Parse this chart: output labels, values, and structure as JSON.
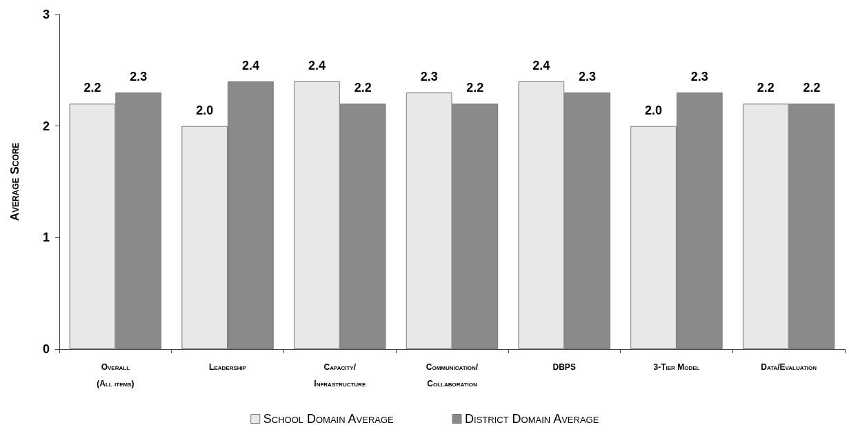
{
  "chart_data": {
    "type": "bar",
    "ylabel": "Average Score",
    "categories": [
      "Overall\n(All items)",
      "Leadership",
      "Capacity/\nInfrastructure",
      "Communication/\nCollaboration",
      "DBPS",
      "3-Tier Model",
      "Data/Evaluation"
    ],
    "series": [
      {
        "name": "School Domain Average",
        "color": "#e8e8e8",
        "values": [
          2.2,
          2.0,
          2.4,
          2.3,
          2.4,
          2.0,
          2.2
        ],
        "value_labels": [
          "2.2",
          "2.0",
          "2.4",
          "2.3",
          "2.4",
          "2.0",
          "2.2"
        ]
      },
      {
        "name": "District Domain Average",
        "color": "#8a8a8a",
        "values": [
          2.3,
          2.4,
          2.2,
          2.2,
          2.3,
          2.3,
          2.2
        ],
        "value_labels": [
          "2.3",
          "2.4",
          "2.2",
          "2.2",
          "2.3",
          "2.3",
          "2.2"
        ]
      }
    ],
    "ylim": [
      0,
      3
    ],
    "yticks": [
      0,
      1,
      2,
      3
    ],
    "grid": false,
    "legend": "bottom"
  }
}
